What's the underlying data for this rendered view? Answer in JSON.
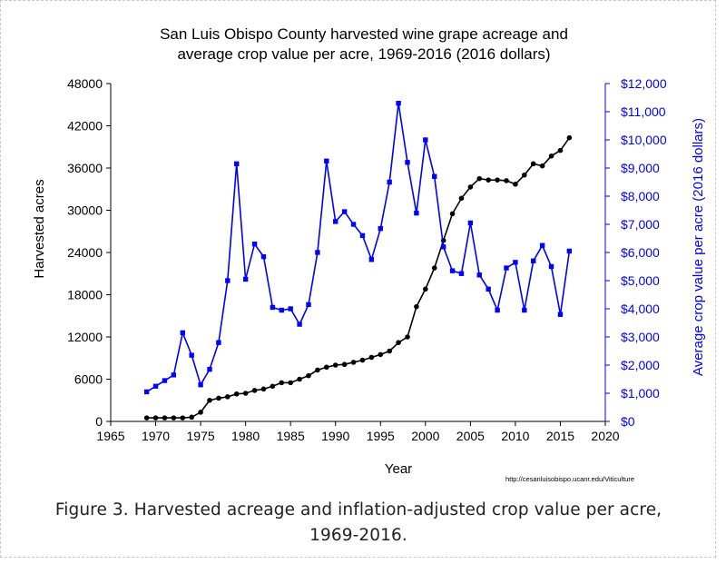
{
  "caption": {
    "line1": "Figure 3. Harvested acreage and inflation-adjusted crop value per acre,",
    "line2": "1969-2016."
  },
  "chart_data": {
    "type": "line",
    "title_line1": "San Luis Obispo County harvested wine grape acreage and",
    "title_line2": "average crop value per acre, 1969-2016 (2016 dollars)",
    "xlabel": "Year",
    "ylabel_left": "Harvested acres",
    "ylabel_right": "Average crop value per acre (2016 dollars)",
    "xlim": [
      1965,
      2020
    ],
    "x_ticks": [
      "1965",
      "1970",
      "1975",
      "1980",
      "1985",
      "1990",
      "1995",
      "2000",
      "2005",
      "2010",
      "2015",
      "2020"
    ],
    "ylim_left": [
      0,
      48000
    ],
    "y_ticks_left": [
      "0",
      "6000",
      "12000",
      "18000",
      "24000",
      "30000",
      "36000",
      "42000",
      "48000"
    ],
    "ylim_right": [
      0,
      12000
    ],
    "y_ticks_right": [
      "$0",
      "$1,000",
      "$2,000",
      "$3,000",
      "$4,000",
      "$5,000",
      "$6,000",
      "$7,000",
      "$8,000",
      "$9,000",
      "$10,000",
      "$11,000",
      "$12,000"
    ],
    "source": "http://cesanluisobispo.ucanr.edu/Viticulture",
    "colors": {
      "acres": "#000000",
      "value": "#0000ff"
    },
    "series": [
      {
        "axis": "left",
        "x": [
          1969,
          1970,
          1971,
          1972,
          1973,
          1974,
          1975,
          1976,
          1977,
          1978,
          1979,
          1980,
          1981,
          1982,
          1983,
          1984,
          1985,
          1986,
          1987,
          1988,
          1989,
          1990,
          1991,
          1992,
          1993,
          1994,
          1995,
          1996,
          1997,
          1998,
          1999,
          2000,
          2001,
          2002,
          2003,
          2004,
          2005,
          2006,
          2007,
          2008,
          2009,
          2010,
          2011,
          2012,
          2013,
          2014,
          2015,
          2016
        ],
        "values": [
          500,
          500,
          500,
          500,
          500,
          600,
          1300,
          3000,
          3300,
          3500,
          3900,
          4000,
          4400,
          4600,
          5000,
          5500,
          5500,
          6000,
          6500,
          7300,
          7700,
          8000,
          8100,
          8400,
          8700,
          9100,
          9500,
          10000,
          11200,
          12000,
          16300,
          18800,
          21800,
          25700,
          29500,
          31700,
          33300,
          34500,
          34300,
          34300,
          34200,
          33700,
          35000,
          36600,
          36300,
          37700,
          38500,
          40300
        ]
      },
      {
        "axis": "right",
        "x": [
          1969,
          1970,
          1971,
          1972,
          1973,
          1974,
          1975,
          1976,
          1977,
          1978,
          1979,
          1980,
          1981,
          1982,
          1983,
          1984,
          1985,
          1986,
          1987,
          1988,
          1989,
          1990,
          1991,
          1992,
          1993,
          1994,
          1995,
          1996,
          1997,
          1998,
          1999,
          2000,
          2001,
          2002,
          2003,
          2004,
          2005,
          2006,
          2007,
          2008,
          2009,
          2010,
          2011,
          2012,
          2013,
          2014,
          2015,
          2016
        ],
        "values": [
          1050,
          1250,
          1450,
          1650,
          3150,
          2350,
          1300,
          1850,
          2800,
          5000,
          9150,
          5050,
          6300,
          5850,
          4050,
          3950,
          4000,
          3450,
          4150,
          6000,
          9250,
          7100,
          7450,
          7000,
          6600,
          5750,
          6850,
          8500,
          11300,
          9200,
          7400,
          10000,
          8700,
          6200,
          5350,
          5250,
          7050,
          5200,
          4700,
          3950,
          5450,
          5650,
          3950,
          5700,
          6250,
          5500,
          3800,
          6050
        ]
      }
    ]
  }
}
